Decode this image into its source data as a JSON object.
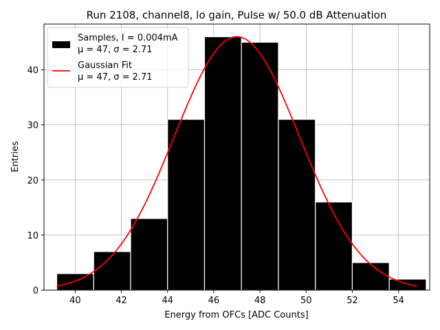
{
  "chart_data": {
    "type": "bar",
    "title": "Run 2108, channel8, lo gain, Pulse w/ 50.0 dB Attenuation",
    "xlabel": "Energy from OFCs [ADC Counts]",
    "ylabel": "Entries",
    "xlim": [
      38.65,
      55.35
    ],
    "ylim": [
      0,
      48.3
    ],
    "xticks": [
      40,
      42,
      44,
      46,
      48,
      50,
      52,
      54
    ],
    "yticks": [
      0,
      10,
      20,
      30,
      40
    ],
    "grid": true,
    "bar_color": "#000000",
    "bar_edge_color": "#ffffff",
    "fit_color": "#ff0000",
    "bins": [
      {
        "left": 39.2,
        "right": 40.8,
        "count": 3
      },
      {
        "left": 40.8,
        "right": 42.4,
        "count": 7
      },
      {
        "left": 42.4,
        "right": 44.0,
        "count": 13
      },
      {
        "left": 44.0,
        "right": 45.6,
        "count": 31
      },
      {
        "left": 45.6,
        "right": 47.2,
        "count": 46
      },
      {
        "left": 47.2,
        "right": 48.8,
        "count": 45
      },
      {
        "left": 48.8,
        "right": 50.4,
        "count": 31
      },
      {
        "left": 50.4,
        "right": 52.0,
        "count": 16
      },
      {
        "left": 52.0,
        "right": 53.6,
        "count": 5
      },
      {
        "left": 53.6,
        "right": 55.2,
        "count": 2
      }
    ],
    "fit": {
      "name": "Gaussian Fit",
      "mu": 47.0,
      "sigma": 2.71,
      "amplitude": 46.0,
      "x_range": [
        39.2,
        54.8
      ]
    },
    "legend": {
      "position": "top-left",
      "entries": [
        {
          "line1": "Samples, I = 0.004mA",
          "line2": "μ = 47, σ = 2.71",
          "kind": "patch"
        },
        {
          "line1": "Gaussian Fit",
          "line2": "μ = 47, σ = 2.71",
          "kind": "line"
        }
      ]
    }
  }
}
